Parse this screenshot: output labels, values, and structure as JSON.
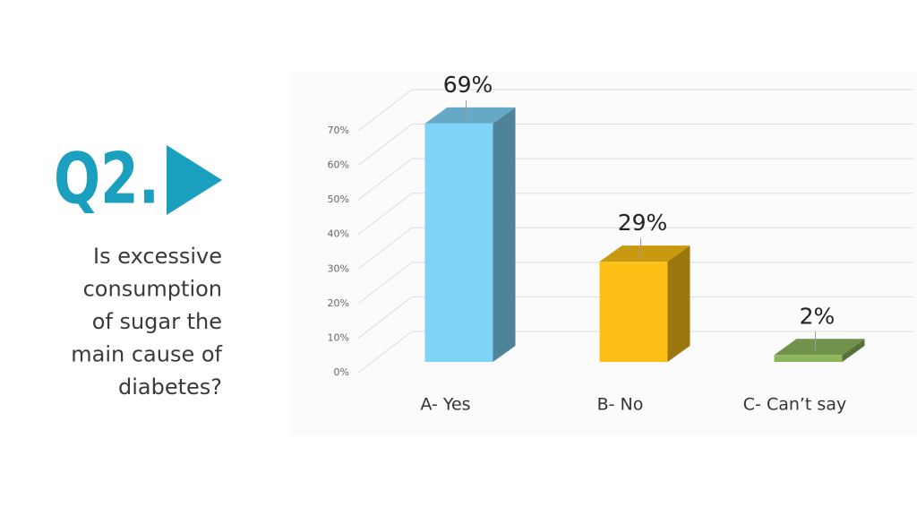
{
  "question_label": "Q2.",
  "question_lines": [
    "Is excessive",
    "consumption",
    "of sugar the",
    "main cause of",
    "diabetes?"
  ],
  "chart_data": {
    "type": "bar3d",
    "categories": [
      "A- Yes",
      "B- No",
      "C- Can’t say"
    ],
    "values": [
      69,
      29,
      2
    ],
    "value_labels": [
      "69%",
      "29%",
      "2%"
    ],
    "colors": [
      "#7fd3f7",
      "#fbbf16",
      "#8cb65c"
    ],
    "ylim": [
      0,
      70
    ],
    "yticks": [
      {
        "value": 0,
        "label": "0%"
      },
      {
        "value": 10,
        "label": "10%"
      },
      {
        "value": 20,
        "label": "20%"
      },
      {
        "value": 30,
        "label": "30%"
      },
      {
        "value": 40,
        "label": "40%"
      },
      {
        "value": 50,
        "label": "50%"
      },
      {
        "value": 60,
        "label": "60%"
      },
      {
        "value": 70,
        "label": "70%"
      }
    ],
    "grid": true
  }
}
